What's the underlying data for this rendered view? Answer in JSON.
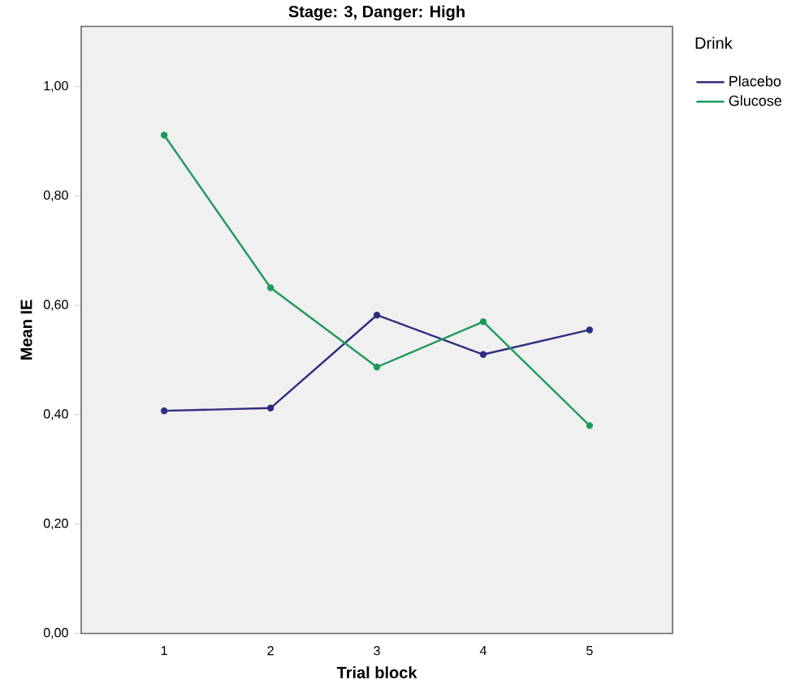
{
  "chart_data": {
    "type": "line",
    "title": "Stage: 3, Danger: High",
    "xlabel": "Trial block",
    "ylabel": "Mean IE",
    "legend_title": "Drink",
    "x": [
      1,
      2,
      3,
      4,
      5
    ],
    "series": [
      {
        "name": "Placebo",
        "color": "#2e2e80",
        "values": [
          0.407,
          0.412,
          0.582,
          0.51,
          0.555
        ]
      },
      {
        "name": "Glucose",
        "color": "#1e9a5a",
        "values": [
          0.911,
          0.632,
          0.487,
          0.57,
          0.38
        ]
      }
    ],
    "xlim": [
      0.22,
      5.78
    ],
    "xticks": [
      1,
      2,
      3,
      4,
      5
    ],
    "ylim": [
      0,
      1.11
    ],
    "yticks": [
      {
        "value": 0,
        "label": "0,00"
      },
      {
        "value": 0.2,
        "label": "0,20"
      },
      {
        "value": 0.4,
        "label": "0,40"
      },
      {
        "value": 0.6,
        "label": "0,60"
      },
      {
        "value": 0.8,
        "label": "0,80"
      },
      {
        "value": 1,
        "label": "1,00"
      }
    ],
    "grid": false,
    "legend": "top right",
    "marker": "circle",
    "line_style": "solid"
  }
}
